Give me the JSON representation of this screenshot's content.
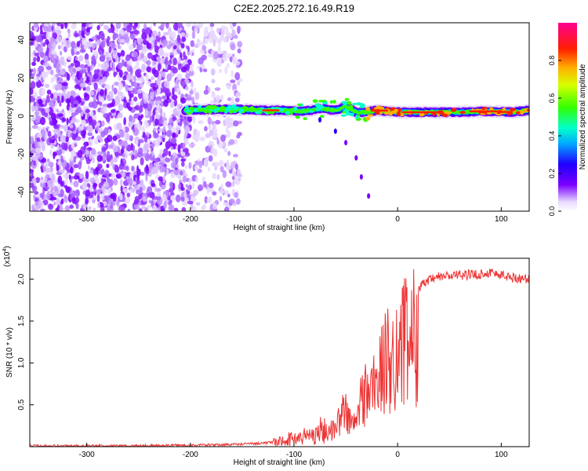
{
  "figure": {
    "title": "C2E2.2025.272.16.49.R19"
  },
  "chart_data": [
    {
      "type": "heatmap",
      "title": "",
      "xlabel": "Height of straight line (km)",
      "ylabel": "Frequency (Hz)",
      "xlim": [
        -355,
        127
      ],
      "ylim": [
        -50,
        49
      ],
      "x_ticks": [
        -300,
        -200,
        -100,
        0,
        100
      ],
      "x_tick_labels": [
        "-300",
        "-200",
        "-100",
        "0",
        "100"
      ],
      "y_ticks": [
        -40,
        -20,
        0,
        20,
        40
      ],
      "y_tick_labels": [
        "-40",
        "-20",
        "0",
        "20",
        "40"
      ],
      "colorbar": {
        "label": "Normalized spectral amplitude",
        "range": [
          0,
          1
        ],
        "ticks": [
          0.0,
          0.2,
          0.4,
          0.6,
          0.8
        ],
        "tick_labels": [
          "0.0",
          "0.2",
          "0.4",
          "0.6",
          "0.8"
        ]
      },
      "regions": {
        "noise_end_km": -152,
        "noise_dense_end_km": -200,
        "signal_start_km": -205
      },
      "ridge": {
        "x": [
          -205,
          -180,
          -150,
          -130,
          -110,
          -90,
          -75,
          -60,
          -50,
          -40,
          -30,
          -20,
          0,
          30,
          60,
          90,
          110,
          127
        ],
        "y": [
          3,
          3.5,
          3.5,
          3,
          3,
          2.5,
          4,
          3,
          5,
          2,
          2,
          3,
          2,
          2,
          2,
          2.5,
          2,
          3
        ]
      },
      "tail": {
        "x": [
          -75,
          -60,
          -50,
          -40,
          -35,
          -28
        ],
        "y": [
          -2,
          -8,
          -14,
          -22,
          -32,
          -42
        ]
      },
      "grid": false
    },
    {
      "type": "line",
      "title": "",
      "xlabel": "Height of straight line (km)",
      "ylabel": "SNR (10 * v/v)",
      "multiplier_label": "(x10",
      "multiplier_exp": "4",
      "multiplier_close": ")",
      "xlim": [
        -355,
        127
      ],
      "ylim": [
        0,
        2.25
      ],
      "x_ticks": [
        -300,
        -200,
        -100,
        0,
        100
      ],
      "x_tick_labels": [
        "-300",
        "-200",
        "-100",
        "0",
        "100"
      ],
      "y_ticks": [
        0.5,
        1.0,
        1.5,
        2.0
      ],
      "y_tick_labels": [
        "0.5",
        "1.0",
        "1.5",
        "2.0"
      ],
      "series": [
        {
          "color": "#ee3333",
          "envelope_x": [
            -355,
            -250,
            -180,
            -150,
            -120,
            -100,
            -80,
            -60,
            -55,
            -50,
            -45,
            -40,
            -35,
            -30,
            -25,
            -20,
            -15,
            -10,
            -5,
            0,
            10,
            20,
            30,
            40,
            60,
            80,
            90,
            100,
            110,
            127
          ],
          "envelope_y": [
            0.01,
            0.01,
            0.02,
            0.03,
            0.05,
            0.1,
            0.15,
            0.3,
            0.5,
            0.6,
            0.35,
            0.4,
            0.8,
            0.9,
            0.95,
            1.1,
            1.25,
            1.4,
            1.5,
            1.6,
            1.75,
            1.9,
            1.98,
            2.03,
            2.05,
            2.06,
            2.08,
            2.05,
            2.02,
            2.0
          ]
        }
      ],
      "grid": false
    }
  ]
}
